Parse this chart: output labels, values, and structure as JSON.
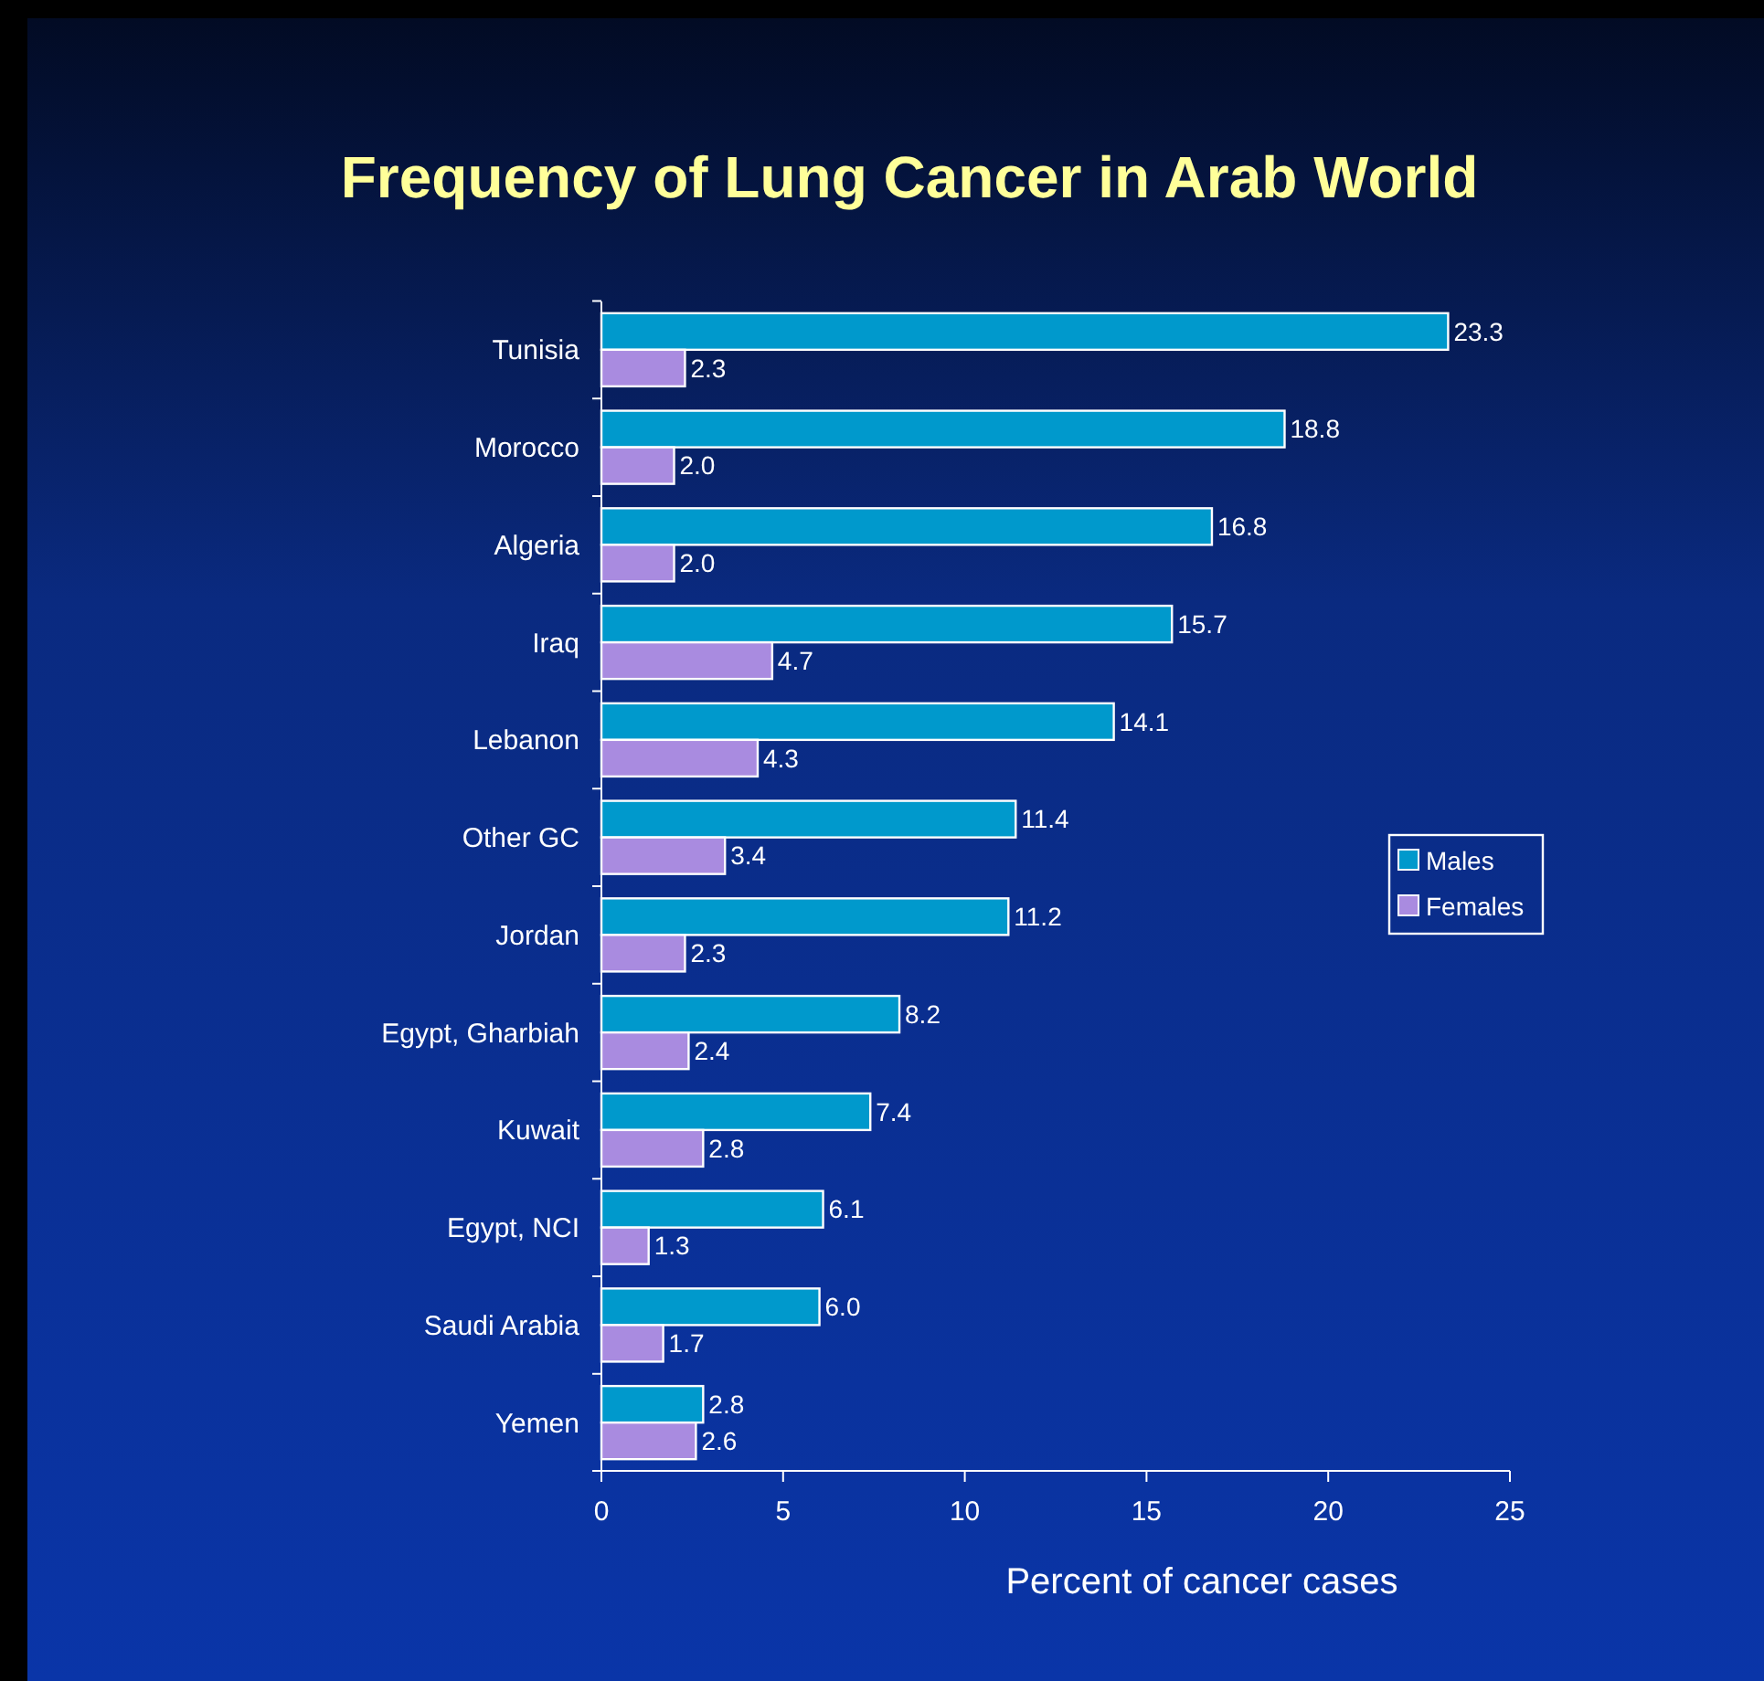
{
  "chart_data": {
    "type": "bar",
    "orientation": "horizontal",
    "title": "Frequency of Lung Cancer in Arab World",
    "xlabel": "Percent of cancer cases",
    "categories": [
      "Tunisia",
      "Morocco",
      "Algeria",
      "Iraq",
      "Lebanon",
      "Other GC",
      "Jordan",
      "Egypt, Gharbiah",
      "Kuwait",
      "Egypt, NCI",
      "Saudi Arabia",
      "Yemen"
    ],
    "series": [
      {
        "name": "Males",
        "color": "#0099cc",
        "values": [
          23.3,
          18.8,
          16.8,
          15.7,
          14.1,
          11.4,
          11.2,
          8.2,
          7.4,
          6.1,
          6.0,
          2.8
        ]
      },
      {
        "name": "Females",
        "color": "#a98be0",
        "values": [
          2.3,
          2.0,
          2.0,
          4.7,
          4.3,
          3.4,
          2.3,
          2.4,
          2.8,
          1.3,
          1.7,
          2.6
        ]
      }
    ],
    "value_labels": [
      [
        "23.3",
        "18.8",
        "16.8",
        "15.7",
        "14.1",
        "11.4",
        "11.2",
        "8.2",
        "7.4",
        "6.1",
        "6.0",
        "2.8"
      ],
      [
        "2.3",
        "2.0",
        "2.0",
        "4.7",
        "4.3",
        "3.4",
        "2.3",
        "2.4",
        "2.8",
        "1.3",
        "1.7",
        "2.6"
      ]
    ],
    "xlim": [
      0,
      25
    ],
    "xticks": [
      0,
      5,
      10,
      15,
      20,
      25
    ],
    "legend": "right",
    "grid": false
  }
}
